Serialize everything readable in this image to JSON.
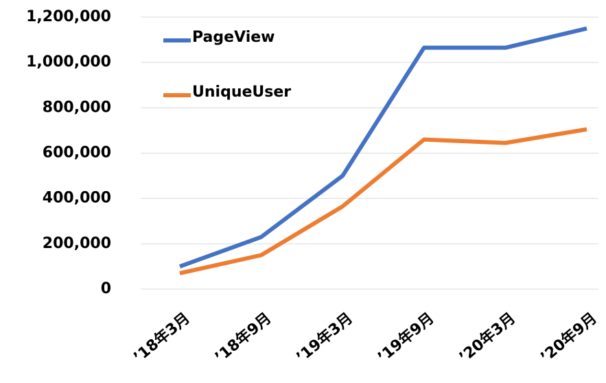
{
  "chart_data": {
    "type": "line",
    "categories": [
      "’18年3月",
      "’18年9月",
      "’19年3月",
      "’19年9月",
      "’20年3月",
      "’20年9月"
    ],
    "series": [
      {
        "name": "PageView",
        "color": "#4472c4",
        "values": [
          100000,
          230000,
          500000,
          1065000,
          1065000,
          1150000
        ]
      },
      {
        "name": "UniqueUser",
        "color": "#ed7d31",
        "values": [
          70000,
          150000,
          365000,
          660000,
          645000,
          705000
        ]
      }
    ],
    "ylim": [
      0,
      1200000
    ],
    "yticks": [
      0,
      {
        "value": 200000,
        "label": "200,000"
      },
      {
        "value": 400000,
        "label": "400,000"
      },
      {
        "value": 600000,
        "label": "600,000"
      },
      {
        "value": 800000,
        "label": "800,000"
      },
      {
        "value": 1000000,
        "label": "1,000,000"
      },
      {
        "value": 1200000,
        "label": "1,200,000"
      }
    ],
    "grid": true,
    "legend": "upper-left"
  }
}
